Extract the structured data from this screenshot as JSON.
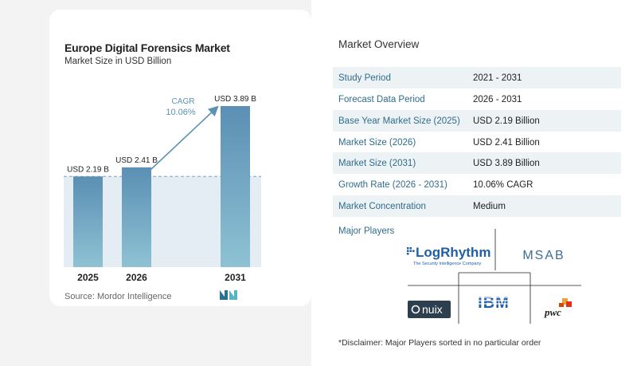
{
  "chart": {
    "title": "Europe Digital Forensics Market",
    "subtitle": "Market Size in USD Billion",
    "source": "Source:  Mordor Intelligence",
    "cagr_label": "CAGR",
    "cagr_value": "10.06%"
  },
  "chart_data": {
    "type": "bar",
    "title": "Europe Digital Forensics Market",
    "subtitle": "Market Size in USD Billion",
    "categories": [
      "2025",
      "2026",
      "2031"
    ],
    "values": [
      2.19,
      2.41,
      3.89
    ],
    "data_labels": [
      "USD 2.19 B",
      "USD 2.41 B",
      "USD 3.89 B"
    ],
    "annotation": "CAGR 10.06%",
    "ylim": [
      0,
      4.2
    ],
    "grid": false,
    "colors": {
      "bar_top": "#5b8fb4",
      "bar_bottom": "#8ec2d3",
      "shade": "#e4edf3",
      "arrow": "#5a93b6",
      "cagr": "#5a93b6"
    }
  },
  "overview": {
    "title": "Market Overview",
    "rows": [
      {
        "label": "Study Period",
        "value": "2021 - 2031"
      },
      {
        "label": "Forecast Data Period",
        "value": "2026 - 2031"
      },
      {
        "label": "Base Year Market Size (2025)",
        "value": "USD 2.19 Billion"
      },
      {
        "label": "Market Size (2026)",
        "value": "USD 2.41 Billion"
      },
      {
        "label": "Market Size (2031)",
        "value": "USD 3.89 Billion"
      },
      {
        "label": "Growth Rate (2026 - 2031)",
        "value": "10.06% CAGR"
      },
      {
        "label": "Market Concentration",
        "value": "Medium"
      }
    ],
    "players_title": "Major Players",
    "players": [
      {
        "name": "LogRhythm",
        "tagline": "The Security Intelligence Company"
      },
      {
        "name": "MSAB"
      },
      {
        "name": "nuix"
      },
      {
        "name": "IBM"
      },
      {
        "name": "pwc"
      }
    ],
    "disclaimer": "*Disclaimer: Major Players sorted in no particular order"
  }
}
